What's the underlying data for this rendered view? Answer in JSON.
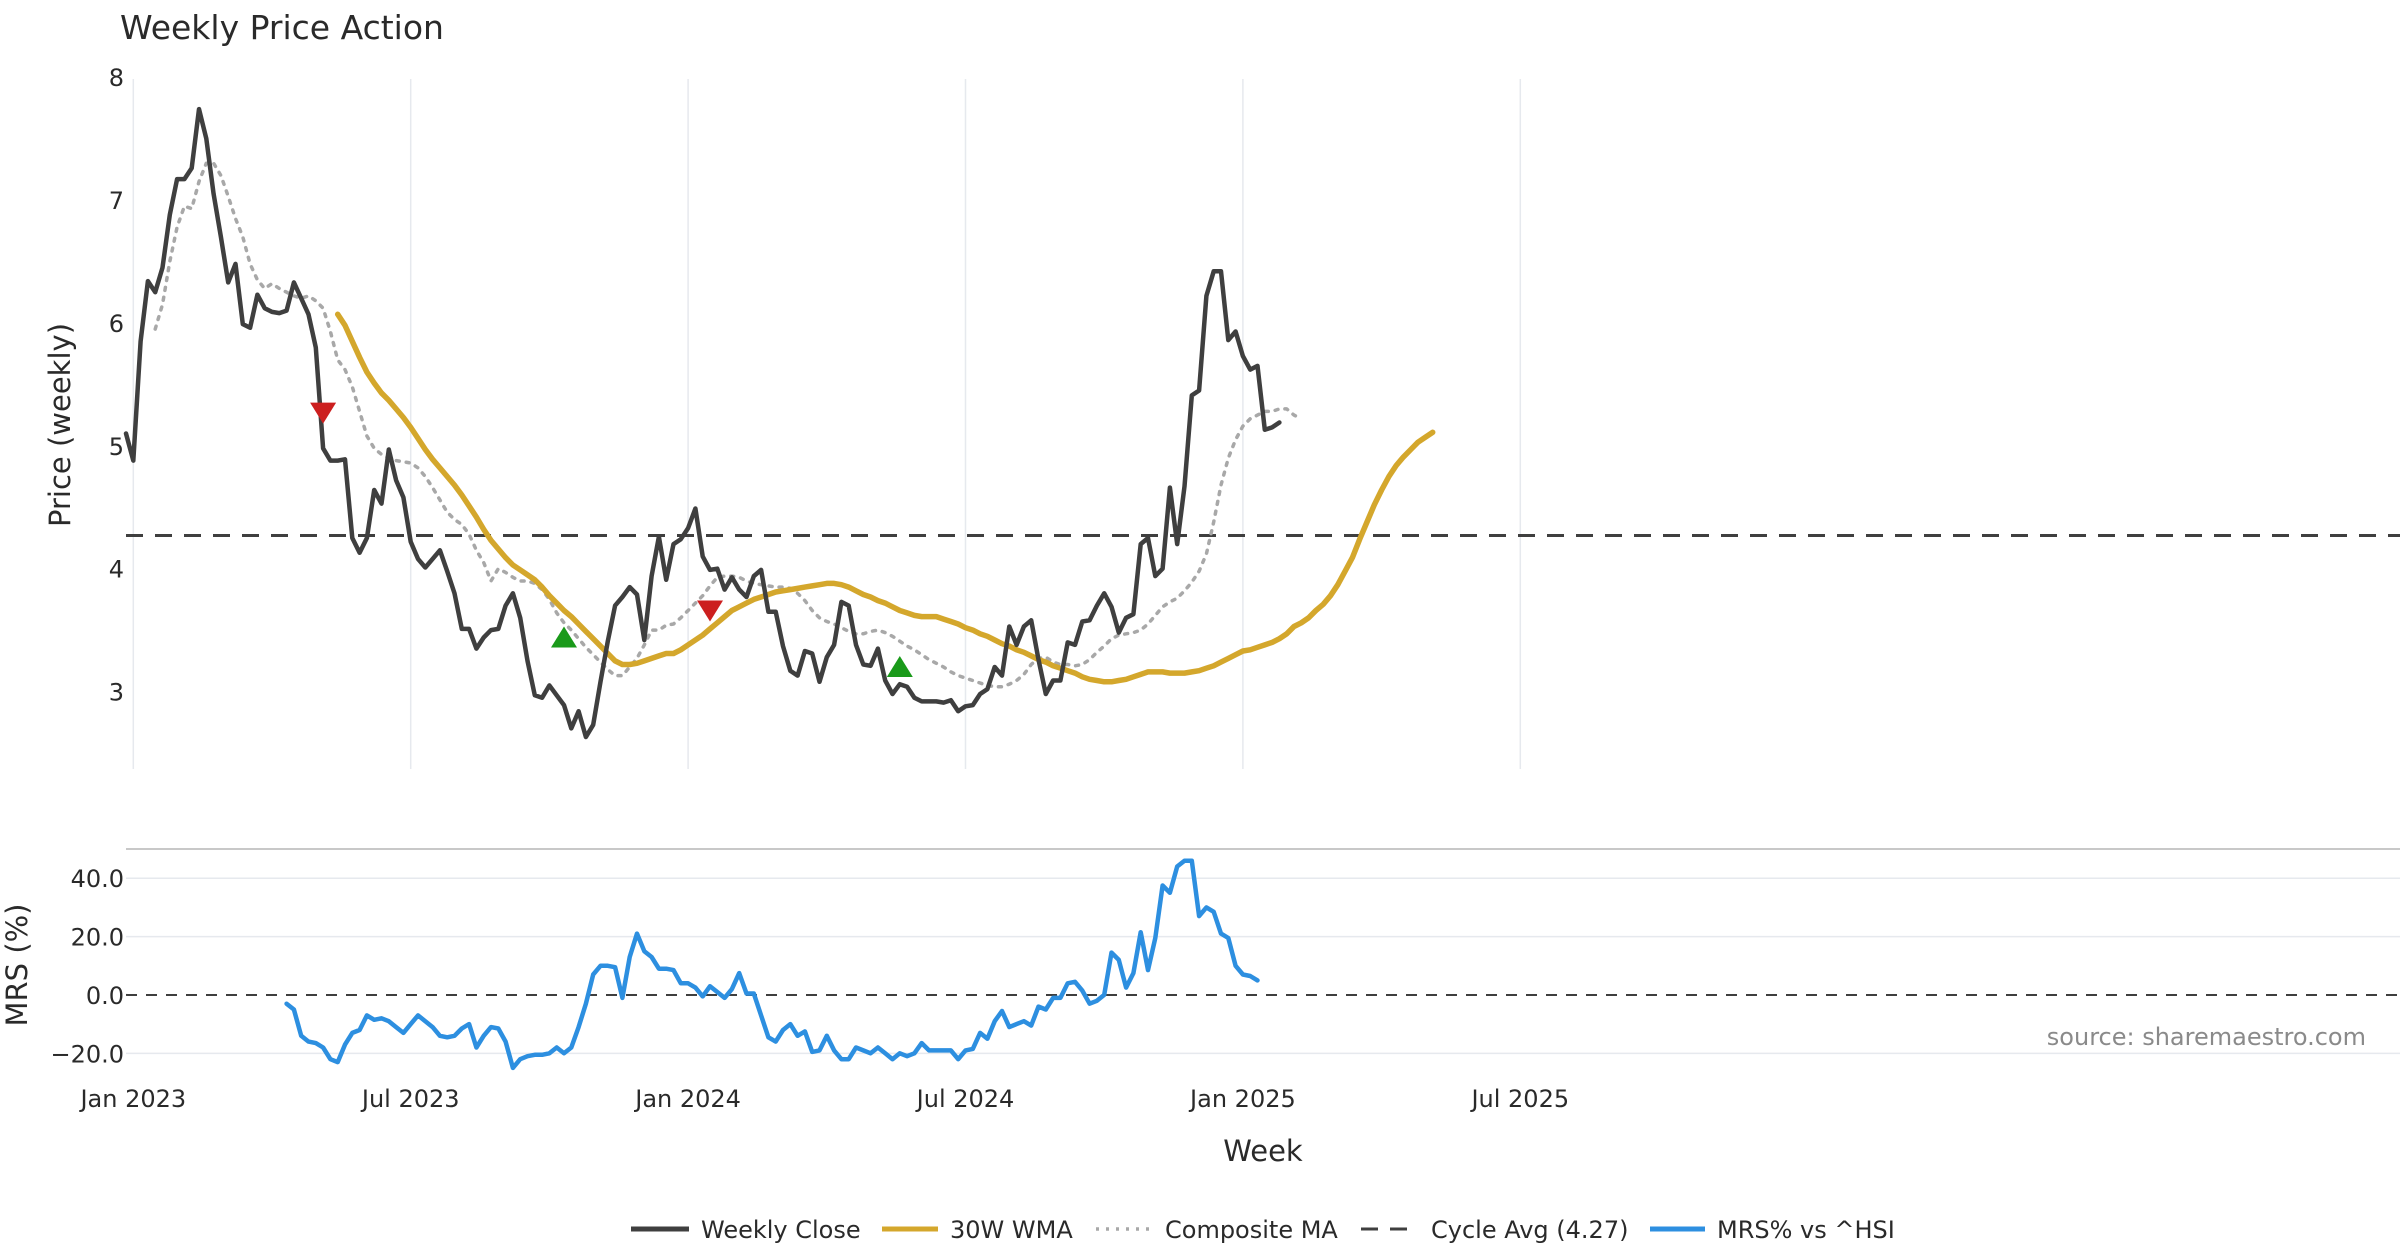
{
  "chart_data": {
    "type": "line",
    "title": "Weekly Price Action",
    "source": "source: sharemaestro.com",
    "xlabel": "Week",
    "x_ticks": [
      "Jan 2023",
      "Jul 2023",
      "Jan 2024",
      "Jul 2024",
      "Jan 2025",
      "Jul 2025"
    ],
    "price_panel": {
      "ylabel": "Price (weekly)",
      "ylim": [
        2.37,
        8.05
      ],
      "y_ticks": [
        "3",
        "4",
        "5",
        "6",
        "7",
        "8"
      ],
      "cycle_avg": 4.27,
      "series": [
        {
          "name": "Weekly Close",
          "color": "#3f3f3f",
          "start_week": 0,
          "values": [
            5.1,
            4.88,
            5.85,
            6.34,
            6.25,
            6.45,
            6.88,
            7.17,
            7.17,
            7.26,
            7.74,
            7.5,
            7.05,
            6.7,
            6.33,
            6.48,
            5.99,
            5.96,
            6.23,
            6.12,
            6.09,
            6.08,
            6.1,
            6.33,
            6.2,
            6.07,
            5.8,
            4.98,
            4.88,
            4.88,
            4.89,
            4.25,
            4.13,
            4.25,
            4.64,
            4.53,
            4.97,
            4.72,
            4.58,
            4.22,
            4.08,
            4.01,
            4.08,
            4.15,
            3.98,
            3.8,
            3.51,
            3.51,
            3.35,
            3.44,
            3.5,
            3.51,
            3.7,
            3.8,
            3.6,
            3.25,
            2.97,
            2.95,
            3.05,
            2.97,
            2.89,
            2.7,
            2.84,
            2.63,
            2.73,
            3.08,
            3.41,
            3.7,
            3.77,
            3.85,
            3.79,
            3.42,
            3.94,
            4.26,
            3.91,
            4.2,
            4.24,
            4.33,
            4.49,
            4.1,
            3.99,
            4.0,
            3.83,
            3.93,
            3.83,
            3.77,
            3.94,
            3.99,
            3.65,
            3.65,
            3.37,
            3.17,
            3.13,
            3.33,
            3.31,
            3.08,
            3.28,
            3.38,
            3.73,
            3.7,
            3.38,
            3.22,
            3.21,
            3.35,
            3.09,
            2.98,
            3.06,
            3.04,
            2.95,
            2.92,
            2.92,
            2.92,
            2.91,
            2.93,
            2.84,
            2.88,
            2.89,
            2.98,
            3.02,
            3.2,
            3.13,
            3.53,
            3.38,
            3.53,
            3.58,
            3.26,
            2.98,
            3.09,
            3.09,
            3.4,
            3.38,
            3.57,
            3.58,
            3.7,
            3.8,
            3.69,
            3.48,
            3.6,
            3.63,
            4.2,
            4.25,
            3.94,
            4.0,
            4.66,
            4.2,
            4.67,
            5.41,
            5.45,
            6.22,
            6.42,
            6.42,
            5.86,
            5.93,
            5.73,
            5.62,
            5.65,
            5.13,
            5.15,
            5.19
          ]
        },
        {
          "name": "30W WMA",
          "color": "#d4a72c",
          "start_week": 29,
          "values": [
            6.07,
            5.98,
            5.85,
            5.72,
            5.6,
            5.51,
            5.43,
            5.37,
            5.3,
            5.23,
            5.15,
            5.06,
            4.97,
            4.89,
            4.82,
            4.75,
            4.68,
            4.6,
            4.51,
            4.42,
            4.32,
            4.23,
            4.16,
            4.09,
            4.03,
            3.99,
            3.95,
            3.91,
            3.85,
            3.78,
            3.72,
            3.66,
            3.61,
            3.55,
            3.49,
            3.43,
            3.37,
            3.31,
            3.25,
            3.22,
            3.22,
            3.23,
            3.25,
            3.27,
            3.29,
            3.31,
            3.31,
            3.34,
            3.38,
            3.42,
            3.46,
            3.51,
            3.56,
            3.61,
            3.66,
            3.69,
            3.72,
            3.75,
            3.77,
            3.79,
            3.81,
            3.82,
            3.83,
            3.84,
            3.85,
            3.86,
            3.87,
            3.88,
            3.88,
            3.87,
            3.85,
            3.82,
            3.79,
            3.77,
            3.74,
            3.72,
            3.69,
            3.66,
            3.64,
            3.62,
            3.61,
            3.61,
            3.61,
            3.59,
            3.57,
            3.55,
            3.52,
            3.5,
            3.47,
            3.45,
            3.42,
            3.39,
            3.37,
            3.34,
            3.32,
            3.29,
            3.26,
            3.24,
            3.21,
            3.19,
            3.17,
            3.15,
            3.12,
            3.1,
            3.09,
            3.08,
            3.08,
            3.09,
            3.1,
            3.12,
            3.14,
            3.16,
            3.16,
            3.16,
            3.15,
            3.15,
            3.15,
            3.16,
            3.17,
            3.19,
            3.21,
            3.24,
            3.27,
            3.3,
            3.33,
            3.34,
            3.36,
            3.38,
            3.4,
            3.43,
            3.47,
            3.53,
            3.56,
            3.6,
            3.66,
            3.71,
            3.78,
            3.87,
            3.98,
            4.09,
            4.24,
            4.38,
            4.52,
            4.64,
            4.75,
            4.84,
            4.91,
            4.97,
            5.03,
            5.07,
            5.11
          ]
        },
        {
          "name": "Composite MA",
          "color": "#a8a8a8",
          "start_week": 4,
          "values": [
            5.95,
            6.15,
            6.5,
            6.78,
            6.95,
            6.93,
            7.15,
            7.3,
            7.3,
            7.2,
            7.03,
            6.85,
            6.7,
            6.48,
            6.35,
            6.28,
            6.32,
            6.28,
            6.25,
            6.22,
            6.2,
            6.22,
            6.18,
            6.12,
            5.93,
            5.7,
            5.62,
            5.48,
            5.28,
            5.08,
            4.98,
            4.93,
            4.9,
            4.88,
            4.87,
            4.86,
            4.82,
            4.75,
            4.66,
            4.56,
            4.46,
            4.4,
            4.36,
            4.28,
            4.15,
            4.05,
            3.9,
            4.0,
            3.97,
            3.93,
            3.9,
            3.9,
            3.88,
            3.83,
            3.75,
            3.64,
            3.56,
            3.5,
            3.43,
            3.36,
            3.3,
            3.24,
            3.18,
            3.13,
            3.13,
            3.2,
            3.27,
            3.38,
            3.5,
            3.5,
            3.54,
            3.55,
            3.6,
            3.66,
            3.72,
            3.78,
            3.86,
            3.93,
            3.94,
            3.94,
            3.93,
            3.9,
            3.88,
            3.87,
            3.86,
            3.85,
            3.85,
            3.84,
            3.8,
            3.74,
            3.66,
            3.6,
            3.57,
            3.55,
            3.52,
            3.49,
            3.47,
            3.47,
            3.49,
            3.5,
            3.48,
            3.45,
            3.41,
            3.37,
            3.34,
            3.3,
            3.26,
            3.23,
            3.2,
            3.16,
            3.13,
            3.11,
            3.09,
            3.07,
            3.05,
            3.04,
            3.04,
            3.06,
            3.09,
            3.14,
            3.22,
            3.27,
            3.28,
            3.24,
            3.22,
            3.22,
            3.21,
            3.22,
            3.26,
            3.32,
            3.37,
            3.43,
            3.46,
            3.47,
            3.48,
            3.5,
            3.55,
            3.62,
            3.69,
            3.73,
            3.76,
            3.82,
            3.89,
            3.98,
            4.12,
            4.38,
            4.68,
            4.9,
            5.05,
            5.16,
            5.22,
            5.25,
            5.28,
            5.28,
            5.3,
            5.3,
            5.25,
            5.22
          ]
        }
      ],
      "sell_markers": [
        {
          "week": 27,
          "value": 5.27
        },
        {
          "week": 80,
          "value": 3.66
        }
      ],
      "buy_markers": [
        {
          "week": 60,
          "value": 3.44
        },
        {
          "week": 106,
          "value": 3.2
        }
      ]
    },
    "mrs_panel": {
      "ylabel": "MRS (%)",
      "ylim": [
        -24,
        50
      ],
      "y_ticks": [
        "−20.0",
        "0.0",
        "20.0",
        "40.0"
      ],
      "series": [
        {
          "name": "MRS% vs ^HSI",
          "color": "#2d8fe0",
          "start_week": 22,
          "values": [
            -3,
            -5,
            -14,
            -16,
            -16.5,
            -18,
            -22,
            -23,
            -17,
            -13,
            -12,
            -7,
            -8.5,
            -8,
            -9,
            -11,
            -13,
            -10,
            -7,
            -9,
            -11,
            -14,
            -14.5,
            -14,
            -11.5,
            -10,
            -18,
            -14,
            -11,
            -11.5,
            -16,
            -25,
            -22,
            -21,
            -20.5,
            -20.5,
            -20,
            -18,
            -20,
            -18,
            -11,
            -3,
            7,
            10,
            10,
            9.5,
            -1,
            13,
            21,
            15,
            13,
            9,
            9,
            8.5,
            4,
            4,
            2.5,
            -0.5,
            3,
            1,
            -1,
            2,
            7.5,
            0.5,
            0.5,
            -7,
            -14.5,
            -16,
            -12,
            -10,
            -14,
            -12.5,
            -19.5,
            -19,
            -14,
            -19,
            -22,
            -22,
            -18,
            -19,
            -20,
            -18,
            -20,
            -22,
            -20,
            -21,
            -20,
            -16.5,
            -19,
            -19,
            -19,
            -19,
            -22,
            -19,
            -18.5,
            -13,
            -15,
            -9,
            -5.5,
            -11,
            -10,
            -9,
            -10.5,
            -4,
            -5,
            -1,
            -1,
            4,
            4.5,
            1.5,
            -3,
            -2,
            0,
            14.5,
            12,
            2.5,
            7.5,
            21.5,
            8.5,
            19.5,
            37.5,
            35,
            44,
            46,
            46,
            27,
            30,
            28.5,
            21,
            19.5,
            10,
            7,
            6.5,
            5
          ]
        }
      ]
    },
    "legend": [
      "Weekly Close",
      "30W WMA",
      "Composite MA",
      "Cycle Avg (4.27)",
      "MRS% vs ^HSI"
    ],
    "colors": {
      "close": "#3f3f3f",
      "wma": "#d4a72c",
      "composite": "#a8a8a8",
      "cycle": "#3f3f3f",
      "mrs": "#2d8fe0",
      "buy": "#1a9a1a",
      "sell": "#cc1f1f"
    }
  }
}
